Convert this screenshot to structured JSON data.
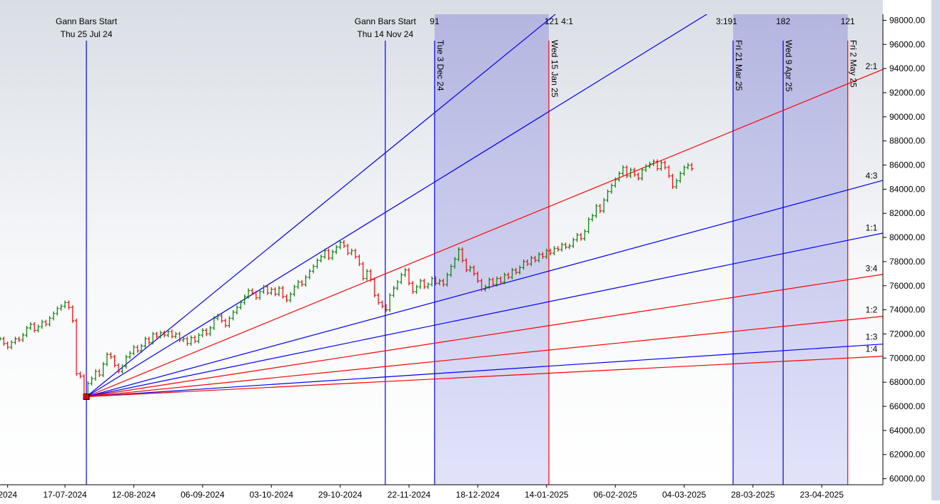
{
  "chart_data": {
    "type": "price_bar",
    "xlim": [
      0,
      231
    ],
    "ylim": [
      59500,
      98500
    ],
    "xticks": [
      {
        "value": 2,
        "label": "2024"
      },
      {
        "value": 17,
        "label": "17-07-2024"
      },
      {
        "value": 35,
        "label": "12-08-2024"
      },
      {
        "value": 53,
        "label": "06-09-2024"
      },
      {
        "value": 71,
        "label": "03-10-2024"
      },
      {
        "value": 89,
        "label": "29-10-2024"
      },
      {
        "value": 107,
        "label": "22-11-2024"
      },
      {
        "value": 125,
        "label": "18-12-2024"
      },
      {
        "value": 143,
        "label": "14-01-2025"
      },
      {
        "value": 161,
        "label": "06-02-2025"
      },
      {
        "value": 179,
        "label": "04-03-2025"
      },
      {
        "value": 197,
        "label": "28-03-2025"
      },
      {
        "value": 215,
        "label": "23-04-2025"
      }
    ],
    "yticks": [
      {
        "value": 60000,
        "label": "60000.00"
      },
      {
        "value": 62000,
        "label": "62000.00"
      },
      {
        "value": 64000,
        "label": "64000.00"
      },
      {
        "value": 66000,
        "label": "66000.00"
      },
      {
        "value": 68000,
        "label": "68000.00"
      },
      {
        "value": 70000,
        "label": "70000.00"
      },
      {
        "value": 72000,
        "label": "72000.00"
      },
      {
        "value": 74000,
        "label": "74000.00"
      },
      {
        "value": 76000,
        "label": "76000.00"
      },
      {
        "value": 78000,
        "label": "78000.00"
      },
      {
        "value": 80000,
        "label": "80000.00"
      },
      {
        "value": 82000,
        "label": "82000.00"
      },
      {
        "value": 84000,
        "label": "84000.00"
      },
      {
        "value": 86000,
        "label": "86000.00"
      },
      {
        "value": 88000,
        "label": "88000.00"
      },
      {
        "value": 90000,
        "label": "90000.00"
      },
      {
        "value": 92000,
        "label": "92000.00"
      },
      {
        "value": 94000,
        "label": "94000.00"
      },
      {
        "value": 96000,
        "label": "96000.00"
      },
      {
        "value": 98000,
        "label": "98000.00"
      }
    ],
    "up_color": "#008000",
    "down_color": "#ff0000",
    "x": [
      0,
      1,
      2,
      3,
      4,
      5,
      6,
      7,
      8,
      9,
      10,
      11,
      12,
      13,
      14,
      15,
      16,
      17,
      18,
      19,
      20,
      21,
      22,
      23,
      24,
      25,
      26,
      27,
      28,
      29,
      30,
      31,
      32,
      33,
      34,
      35,
      36,
      37,
      38,
      39,
      40,
      41,
      42,
      43,
      44,
      45,
      46,
      47,
      48,
      49,
      50,
      51,
      52,
      53,
      54,
      55,
      56,
      57,
      58,
      59,
      60,
      61,
      62,
      63,
      64,
      65,
      66,
      67,
      68,
      69,
      70,
      71,
      72,
      73,
      74,
      75,
      76,
      77,
      78,
      79,
      80,
      81,
      82,
      83,
      84,
      85,
      86,
      87,
      88,
      89,
      90,
      91,
      92,
      93,
      94,
      95,
      96,
      97,
      98,
      99,
      100,
      101,
      102,
      103,
      104,
      105,
      106,
      107,
      108,
      109,
      110,
      111,
      112,
      113,
      114,
      115,
      116,
      117,
      118,
      119,
      120,
      121,
      122,
      123,
      124,
      125,
      126,
      127,
      128,
      129,
      130,
      131,
      132,
      133,
      134,
      135,
      136,
      137,
      138,
      139,
      140,
      141,
      142,
      143,
      144,
      145,
      146,
      147,
      148,
      149,
      150,
      151,
      152,
      153,
      154,
      155,
      156,
      157,
      158,
      159,
      160,
      161,
      162,
      163,
      164,
      165,
      166,
      167,
      168,
      169,
      170,
      171,
      172,
      173,
      174,
      175,
      176,
      177,
      178,
      179,
      180,
      181
    ],
    "values": [
      71600,
      71200,
      70900,
      71300,
      71600,
      71500,
      71900,
      72500,
      72800,
      72300,
      72600,
      73000,
      72800,
      73300,
      73700,
      74100,
      74300,
      74600,
      74200,
      73100,
      68700,
      68500,
      66900,
      67900,
      68300,
      68900,
      68600,
      69500,
      70300,
      70100,
      69400,
      68900,
      69300,
      70100,
      70400,
      70900,
      70600,
      71000,
      71600,
      71300,
      72000,
      71800,
      72100,
      71900,
      72200,
      71800,
      72000,
      71500,
      71600,
      71200,
      71700,
      71400,
      71900,
      72300,
      72000,
      72500,
      73300,
      73500,
      73100,
      72700,
      73300,
      73800,
      74200,
      74600,
      75100,
      75600,
      75400,
      75000,
      75500,
      75900,
      75400,
      75700,
      75300,
      75800,
      75100,
      74800,
      75300,
      75900,
      76300,
      76100,
      76700,
      77200,
      77600,
      78100,
      78400,
      78900,
      78300,
      78800,
      79200,
      79600,
      79300,
      78700,
      78900,
      78400,
      77800,
      76600,
      77200,
      76500,
      75200,
      74600,
      74300,
      74000,
      75200,
      75800,
      76300,
      76900,
      77300,
      76200,
      75500,
      75900,
      76400,
      75900,
      76100,
      76600,
      76200,
      76400,
      76100,
      76900,
      77600,
      78200,
      79000,
      78100,
      77300,
      77500,
      77000,
      76400,
      75700,
      75900,
      76500,
      76100,
      76600,
      76300,
      76900,
      76700,
      77300,
      77100,
      77500,
      78000,
      77800,
      78300,
      78100,
      78600,
      78400,
      78900,
      78700,
      79100,
      79000,
      79400,
      79200,
      79300,
      79800,
      80200,
      79900,
      80500,
      81500,
      81800,
      82600,
      82200,
      83100,
      83800,
      84300,
      84800,
      85300,
      85800,
      85100,
      85600,
      85200,
      84900,
      85600,
      85900,
      86100,
      86300,
      85700,
      86200,
      85800,
      85100,
      84200,
      84700,
      85300,
      85800,
      86000,
      85700
    ],
    "bands": [
      {
        "x0": 113.7,
        "x1": 143.6
      },
      {
        "x0": 191.8,
        "x1": 221.8
      }
    ],
    "top_labels": [
      {
        "x": 113.7,
        "text": "91"
      },
      {
        "x": 146.2,
        "text": "121 4:1"
      },
      {
        "x": 190.1,
        "text": "3:191"
      },
      {
        "x": 204.9,
        "text": "182"
      },
      {
        "x": 221.8,
        "text": "121"
      }
    ],
    "vlines": [
      {
        "x": 22.6,
        "color": "#0000ff",
        "title": "Gann Bars Start",
        "date": "Thu 25 Jul 24"
      },
      {
        "x": 100.8,
        "color": "#0000ff",
        "title": "Gann Bars Start",
        "date": "Thu 14 Nov 24"
      },
      {
        "x": 113.7,
        "color": "#0000ff",
        "label": "Tue 3 Dec 24"
      },
      {
        "x": 143.6,
        "color": "#ff0000",
        "label": "Wed 15 Jan 25"
      },
      {
        "x": 191.8,
        "color": "#0000ff",
        "label": "Fri 21 Mar 25"
      },
      {
        "x": 204.9,
        "color": "#0000ff",
        "label": "Wed 9 Apr 25"
      },
      {
        "x": 221.8,
        "color": "#ff0000",
        "label": "Fri 2 May 25"
      }
    ],
    "fan": {
      "origin_x": 22.6,
      "origin_y": 66800,
      "marker_color": "#dd0000",
      "lines": [
        {
          "color": "#0000ff",
          "end_y": 120650
        },
        {
          "color": "#0000ff",
          "end_y": 107500
        },
        {
          "color": "#ff0000",
          "end_y": 93930,
          "label": "2:1"
        },
        {
          "color": "#0000ff",
          "end_y": 84730,
          "label": "4:3"
        },
        {
          "color": "#0000ff",
          "end_y": 80360,
          "label": "1:1"
        },
        {
          "color": "#ff0000",
          "end_y": 76940,
          "label": "3:4"
        },
        {
          "color": "#ff0000",
          "end_y": 73460,
          "label": "1:2"
        },
        {
          "color": "#0000ff",
          "end_y": 71160,
          "label": "1:3"
        },
        {
          "color": "#ff0000",
          "end_y": 70150,
          "label": "1:4"
        }
      ]
    }
  }
}
